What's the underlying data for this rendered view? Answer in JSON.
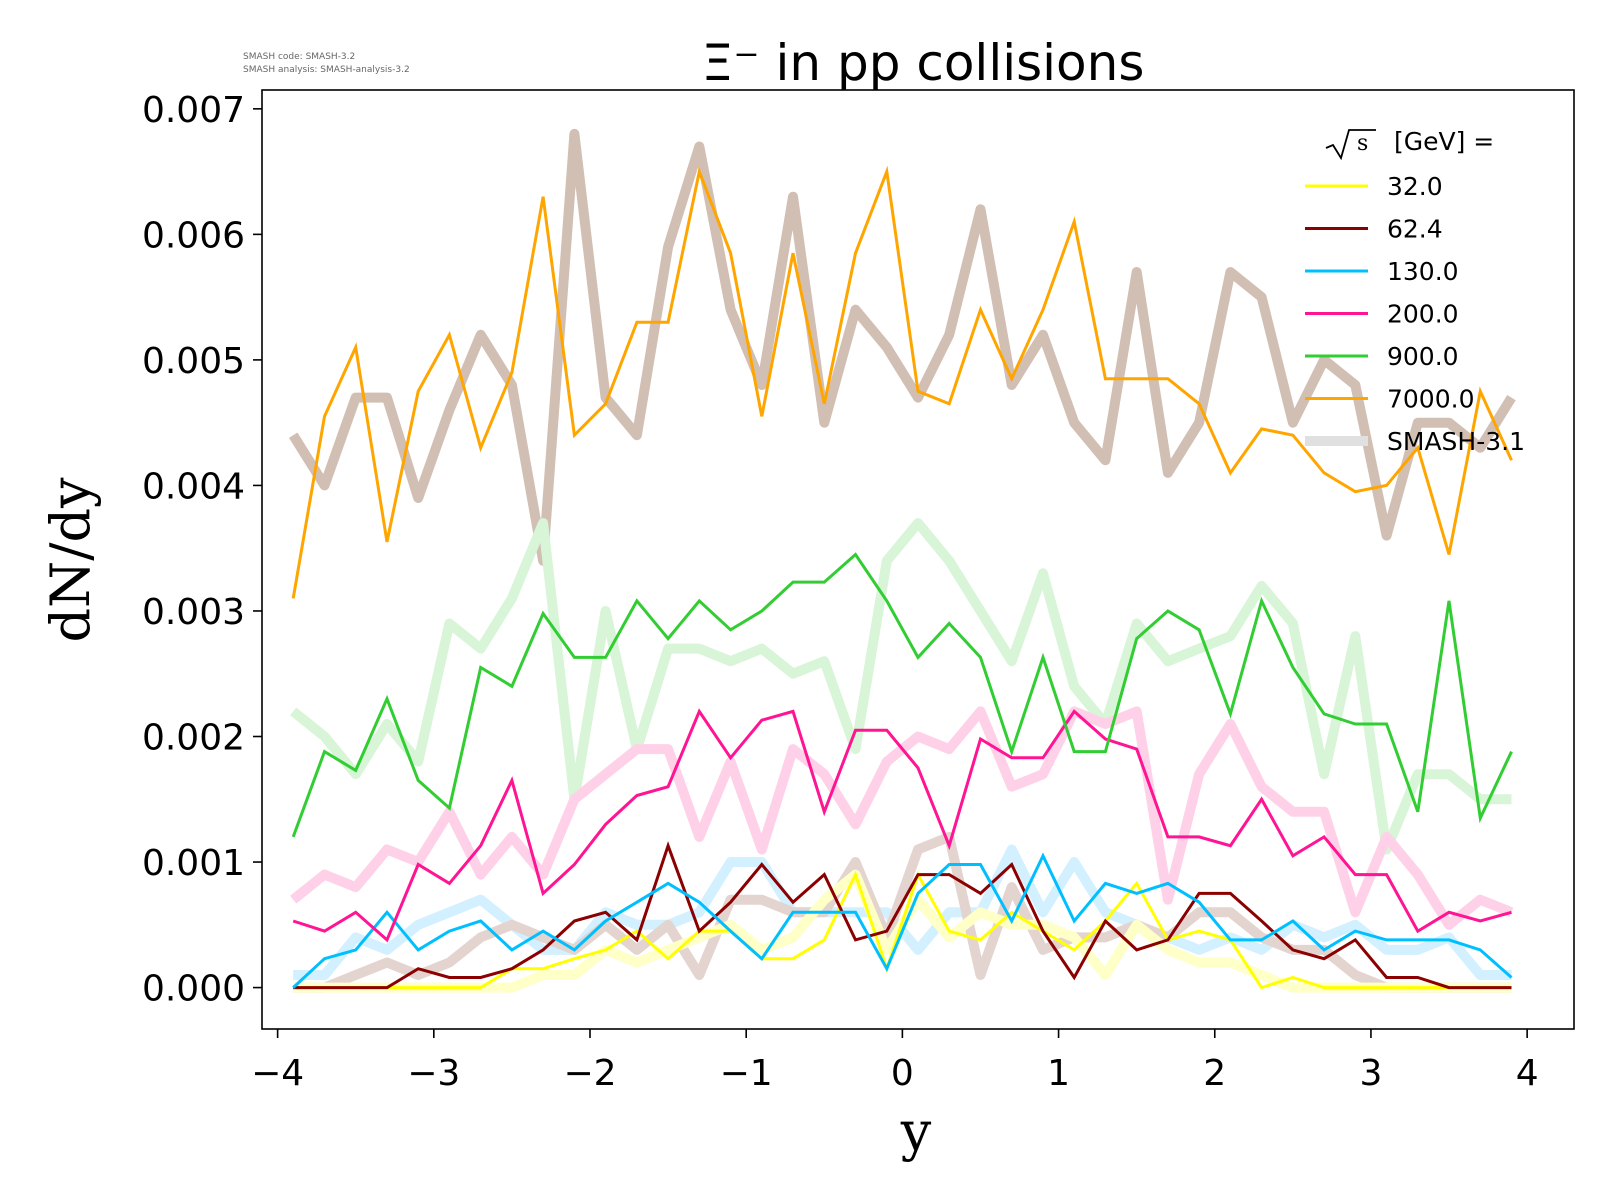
{
  "meta": {
    "line1": "SMASH code:      SMASH-3.2",
    "line2": "SMASH analysis: SMASH-analysis-3.2"
  },
  "chart_data": {
    "type": "line",
    "title": "Ξ⁻ in pp collisions",
    "xlabel": "y",
    "ylabel": "dN/dy",
    "xlim": [
      -4.1,
      4.3
    ],
    "ylim": [
      -0.00033,
      0.00715
    ],
    "xticks": [
      -4,
      -3,
      -2,
      -1,
      0,
      1,
      2,
      3,
      4
    ],
    "xtick_labels": [
      "−4",
      "−3",
      "−2",
      "−1",
      "0",
      "1",
      "2",
      "3",
      "4"
    ],
    "yticks": [
      0.0,
      0.001,
      0.002,
      0.003,
      0.004,
      0.005,
      0.006,
      0.007
    ],
    "ytick_labels": [
      "0.000",
      "0.001",
      "0.002",
      "0.003",
      "0.004",
      "0.005",
      "0.006",
      "0.007"
    ],
    "grid": false,
    "legend": {
      "placement": "top-right",
      "title_sqrt": "s",
      "title_rest": "[GeV] =",
      "reference_label": "SMASH-3.1"
    },
    "x": [
      -3.9,
      -3.7,
      -3.5,
      -3.3,
      -3.1,
      -2.9,
      -2.7,
      -2.5,
      -2.3,
      -2.1,
      -1.9,
      -1.7,
      -1.5,
      -1.3,
      -1.1,
      -0.9,
      -0.7,
      -0.5,
      -0.3,
      -0.1,
      0.1,
      0.3,
      0.5,
      0.7,
      0.9,
      1.1,
      1.3,
      1.5,
      1.7,
      1.9,
      2.1,
      2.3,
      2.5,
      2.7,
      2.9,
      3.1,
      3.3,
      3.5,
      3.7,
      3.9
    ],
    "series": [
      {
        "name": "32.0",
        "color": "#ffff00",
        "values": [
          0.0,
          0.0,
          0.0,
          0.0,
          0.0,
          0.0,
          0.0,
          0.00015,
          0.00015,
          0.00023,
          0.0003,
          0.00045,
          0.00023,
          0.00045,
          0.00045,
          0.00023,
          0.00023,
          0.00038,
          0.0009,
          0.00015,
          0.0009,
          0.00045,
          0.00038,
          0.0006,
          0.00045,
          0.0003,
          0.00053,
          0.00083,
          0.00038,
          0.00045,
          0.00038,
          0.0,
          8e-05,
          0.0,
          0.0,
          0.0,
          0.0,
          0.0,
          0.0,
          0.0
        ]
      },
      {
        "name": "62.4",
        "color": "#8b0000",
        "values": [
          0.0,
          0.0,
          0.0,
          0.0,
          0.00015,
          8e-05,
          8e-05,
          0.00015,
          0.0003,
          0.00053,
          0.0006,
          0.00038,
          0.00113,
          0.00045,
          0.00068,
          0.00098,
          0.00068,
          0.0009,
          0.00038,
          0.00045,
          0.0009,
          0.0009,
          0.00075,
          0.00098,
          0.00045,
          8e-05,
          0.00053,
          0.0003,
          0.00038,
          0.00075,
          0.00075,
          0.00053,
          0.0003,
          0.00023,
          0.00038,
          8e-05,
          8e-05,
          0.0,
          0.0,
          0.0
        ]
      },
      {
        "name": "130.0",
        "color": "#00bfff",
        "values": [
          0.0,
          0.00023,
          0.0003,
          0.0006,
          0.0003,
          0.00045,
          0.00053,
          0.0003,
          0.00045,
          0.0003,
          0.00053,
          0.00068,
          0.00083,
          0.00068,
          0.00045,
          0.00023,
          0.0006,
          0.0006,
          0.0006,
          0.00015,
          0.00075,
          0.00098,
          0.00098,
          0.00053,
          0.00105,
          0.00053,
          0.00083,
          0.00075,
          0.00083,
          0.00068,
          0.00038,
          0.00038,
          0.00053,
          0.0003,
          0.00045,
          0.00038,
          0.00038,
          0.00038,
          0.0003,
          8e-05
        ]
      },
      {
        "name": "200.0",
        "color": "#ff1493",
        "values": [
          0.00053,
          0.00045,
          0.0006,
          0.00038,
          0.00098,
          0.00083,
          0.00113,
          0.00165,
          0.00075,
          0.00098,
          0.0013,
          0.00153,
          0.0016,
          0.0022,
          0.00183,
          0.00213,
          0.0022,
          0.0014,
          0.00205,
          0.00205,
          0.00175,
          0.00113,
          0.00198,
          0.00183,
          0.00183,
          0.0022,
          0.00198,
          0.0019,
          0.0012,
          0.0012,
          0.00113,
          0.0015,
          0.00105,
          0.0012,
          0.0009,
          0.0009,
          0.00045,
          0.0006,
          0.00053,
          0.0006
        ]
      },
      {
        "name": "900.0",
        "color": "#32cd32",
        "values": [
          0.0012,
          0.00188,
          0.00173,
          0.0023,
          0.00165,
          0.00143,
          0.00255,
          0.0024,
          0.00298,
          0.00263,
          0.00263,
          0.00308,
          0.00278,
          0.00308,
          0.00285,
          0.003,
          0.00323,
          0.00323,
          0.00345,
          0.00308,
          0.00263,
          0.0029,
          0.00263,
          0.00188,
          0.00263,
          0.00188,
          0.00188,
          0.00278,
          0.003,
          0.00285,
          0.00218,
          0.00308,
          0.00255,
          0.00218,
          0.0021,
          0.0021,
          0.0014,
          0.00308,
          0.00135,
          0.00188
        ]
      },
      {
        "name": "7000.0",
        "color": "#ffa500",
        "values": [
          0.0031,
          0.00455,
          0.0051,
          0.00355,
          0.00475,
          0.0052,
          0.0043,
          0.0049,
          0.0063,
          0.0044,
          0.00465,
          0.0053,
          0.0053,
          0.0065,
          0.00585,
          0.00455,
          0.00585,
          0.00465,
          0.00585,
          0.0065,
          0.00475,
          0.00465,
          0.0054,
          0.00485,
          0.0054,
          0.0061,
          0.00485,
          0.00485,
          0.00485,
          0.00465,
          0.0041,
          0.00445,
          0.0044,
          0.0041,
          0.00395,
          0.004,
          0.0043,
          0.00345,
          0.00475,
          0.0042
        ]
      }
    ],
    "reference_series": [
      {
        "color": "#d2bfb4",
        "values": [
          0.0044,
          0.004,
          0.0047,
          0.0047,
          0.0039,
          0.0046,
          0.0052,
          0.0048,
          0.0034,
          0.0068,
          0.0047,
          0.0044,
          0.0059,
          0.0067,
          0.0054,
          0.0048,
          0.0063,
          0.0045,
          0.0054,
          0.0051,
          0.0047,
          0.0052,
          0.0062,
          0.0048,
          0.0052,
          0.0045,
          0.0042,
          0.0057,
          0.0041,
          0.0045,
          0.0057,
          0.0055,
          0.0045,
          0.005,
          0.0048,
          0.0036,
          0.0045,
          0.0045,
          0.0043,
          0.0047
        ]
      },
      {
        "color": "#d8f5d8",
        "values": [
          0.0022,
          0.002,
          0.0017,
          0.0021,
          0.0018,
          0.0029,
          0.0027,
          0.0031,
          0.0037,
          0.0015,
          0.003,
          0.0019,
          0.0027,
          0.0027,
          0.0026,
          0.0027,
          0.0025,
          0.0026,
          0.0019,
          0.0034,
          0.0037,
          0.0034,
          0.003,
          0.0026,
          0.0033,
          0.0024,
          0.0021,
          0.0029,
          0.0026,
          0.0027,
          0.0028,
          0.0032,
          0.0029,
          0.0017,
          0.0028,
          0.0011,
          0.0017,
          0.0017,
          0.0015,
          0.0015
        ]
      },
      {
        "color": "#ffd1e8",
        "values": [
          0.0007,
          0.0009,
          0.0008,
          0.0011,
          0.001,
          0.0014,
          0.0009,
          0.0012,
          0.0009,
          0.0015,
          0.0017,
          0.0019,
          0.0019,
          0.0012,
          0.0018,
          0.0011,
          0.0019,
          0.0017,
          0.0013,
          0.0018,
          0.002,
          0.0019,
          0.0022,
          0.0016,
          0.0017,
          0.0022,
          0.0021,
          0.0022,
          0.0007,
          0.0017,
          0.0021,
          0.0016,
          0.0014,
          0.0014,
          0.0006,
          0.0012,
          0.0009,
          0.0005,
          0.0007,
          0.0006
        ]
      },
      {
        "color": "#d2f0ff",
        "values": [
          0.0001,
          0.0001,
          0.0004,
          0.0003,
          0.0005,
          0.0006,
          0.0007,
          0.0005,
          0.0003,
          0.0003,
          0.0006,
          0.0005,
          0.0005,
          0.0006,
          0.001,
          0.001,
          0.0006,
          0.0006,
          0.0006,
          0.0006,
          0.0003,
          0.0006,
          0.0006,
          0.0011,
          0.0006,
          0.001,
          0.0006,
          0.0005,
          0.0004,
          0.0003,
          0.0004,
          0.0003,
          0.0005,
          0.0004,
          0.0005,
          0.0003,
          0.0003,
          0.0004,
          0.0001,
          0.0001
        ]
      },
      {
        "color": "#e4d4d0",
        "values": [
          0.0,
          0.0,
          0.0001,
          0.0002,
          0.0001,
          0.0002,
          0.0004,
          0.0005,
          0.0004,
          0.0003,
          0.0005,
          0.0003,
          0.0005,
          0.0001,
          0.0007,
          0.0007,
          0.0006,
          0.0006,
          0.001,
          0.0004,
          0.0011,
          0.0012,
          0.0001,
          0.0008,
          0.0003,
          0.0004,
          0.0004,
          0.0005,
          0.0004,
          0.0006,
          0.0006,
          0.0004,
          0.0003,
          0.0003,
          0.0001,
          0.0,
          0.0,
          0.0,
          0.0,
          0.0
        ]
      },
      {
        "color": "#ffffc8",
        "values": [
          0.0,
          0.0,
          0.0,
          0.0,
          0.0,
          0.0,
          0.0,
          0.0,
          0.0001,
          0.0001,
          0.0003,
          0.0002,
          0.0003,
          0.0004,
          0.0005,
          0.0003,
          0.0004,
          0.0007,
          0.0009,
          0.0003,
          0.0007,
          0.0004,
          0.0006,
          0.0005,
          0.0005,
          0.0004,
          0.0001,
          0.0005,
          0.0003,
          0.0002,
          0.0002,
          0.0001,
          0.0,
          0.0,
          0.0,
          0.0,
          0.0,
          0.0,
          0.0,
          0.0
        ]
      }
    ]
  }
}
